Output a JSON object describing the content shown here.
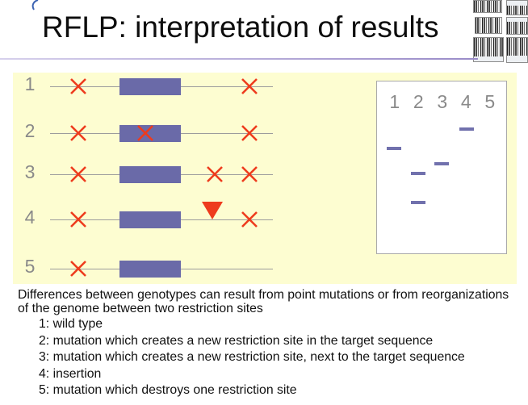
{
  "slide": {
    "title": "RFLP: interpretation of results",
    "rule_colors": [
      "#d6d0ec",
      "#9a8cc8"
    ],
    "header_thumbnail_icon": "gel-image-thumbnail"
  },
  "diagram": {
    "panel_color": "#fdfdd1",
    "target_color": "#6a6aa8",
    "mark_color": "#ee3b1d",
    "site_icon": "restriction-site-x-icon",
    "insertion_icon": "insertion-triangle-icon",
    "rows": [
      {
        "label": "1",
        "restriction_sites": 2,
        "insertion": false
      },
      {
        "label": "2",
        "restriction_sites": 3,
        "insertion": false
      },
      {
        "label": "3",
        "restriction_sites": 3,
        "insertion": false
      },
      {
        "label": "4",
        "restriction_sites": 2,
        "insertion": true
      },
      {
        "label": "5",
        "restriction_sites": 1,
        "insertion": false
      }
    ]
  },
  "gel": {
    "band_color": "#7171ad",
    "lanes": [
      {
        "label": "1",
        "bands": 1
      },
      {
        "label": "2",
        "bands": 2
      },
      {
        "label": "3",
        "bands": 1
      },
      {
        "label": "4",
        "bands": 1
      },
      {
        "label": "5",
        "bands": 0
      }
    ]
  },
  "explanation": {
    "intro": "Differences between genotypes can result from point mutations or from reorganizations of the genome between two restriction sites",
    "items": [
      "1: wild type",
      "2: mutation which creates a new restriction site in the target sequence",
      "3: mutation which creates a new restriction site, next to the target sequence",
      "4: insertion",
      "5: mutation which destroys one restriction site"
    ]
  }
}
